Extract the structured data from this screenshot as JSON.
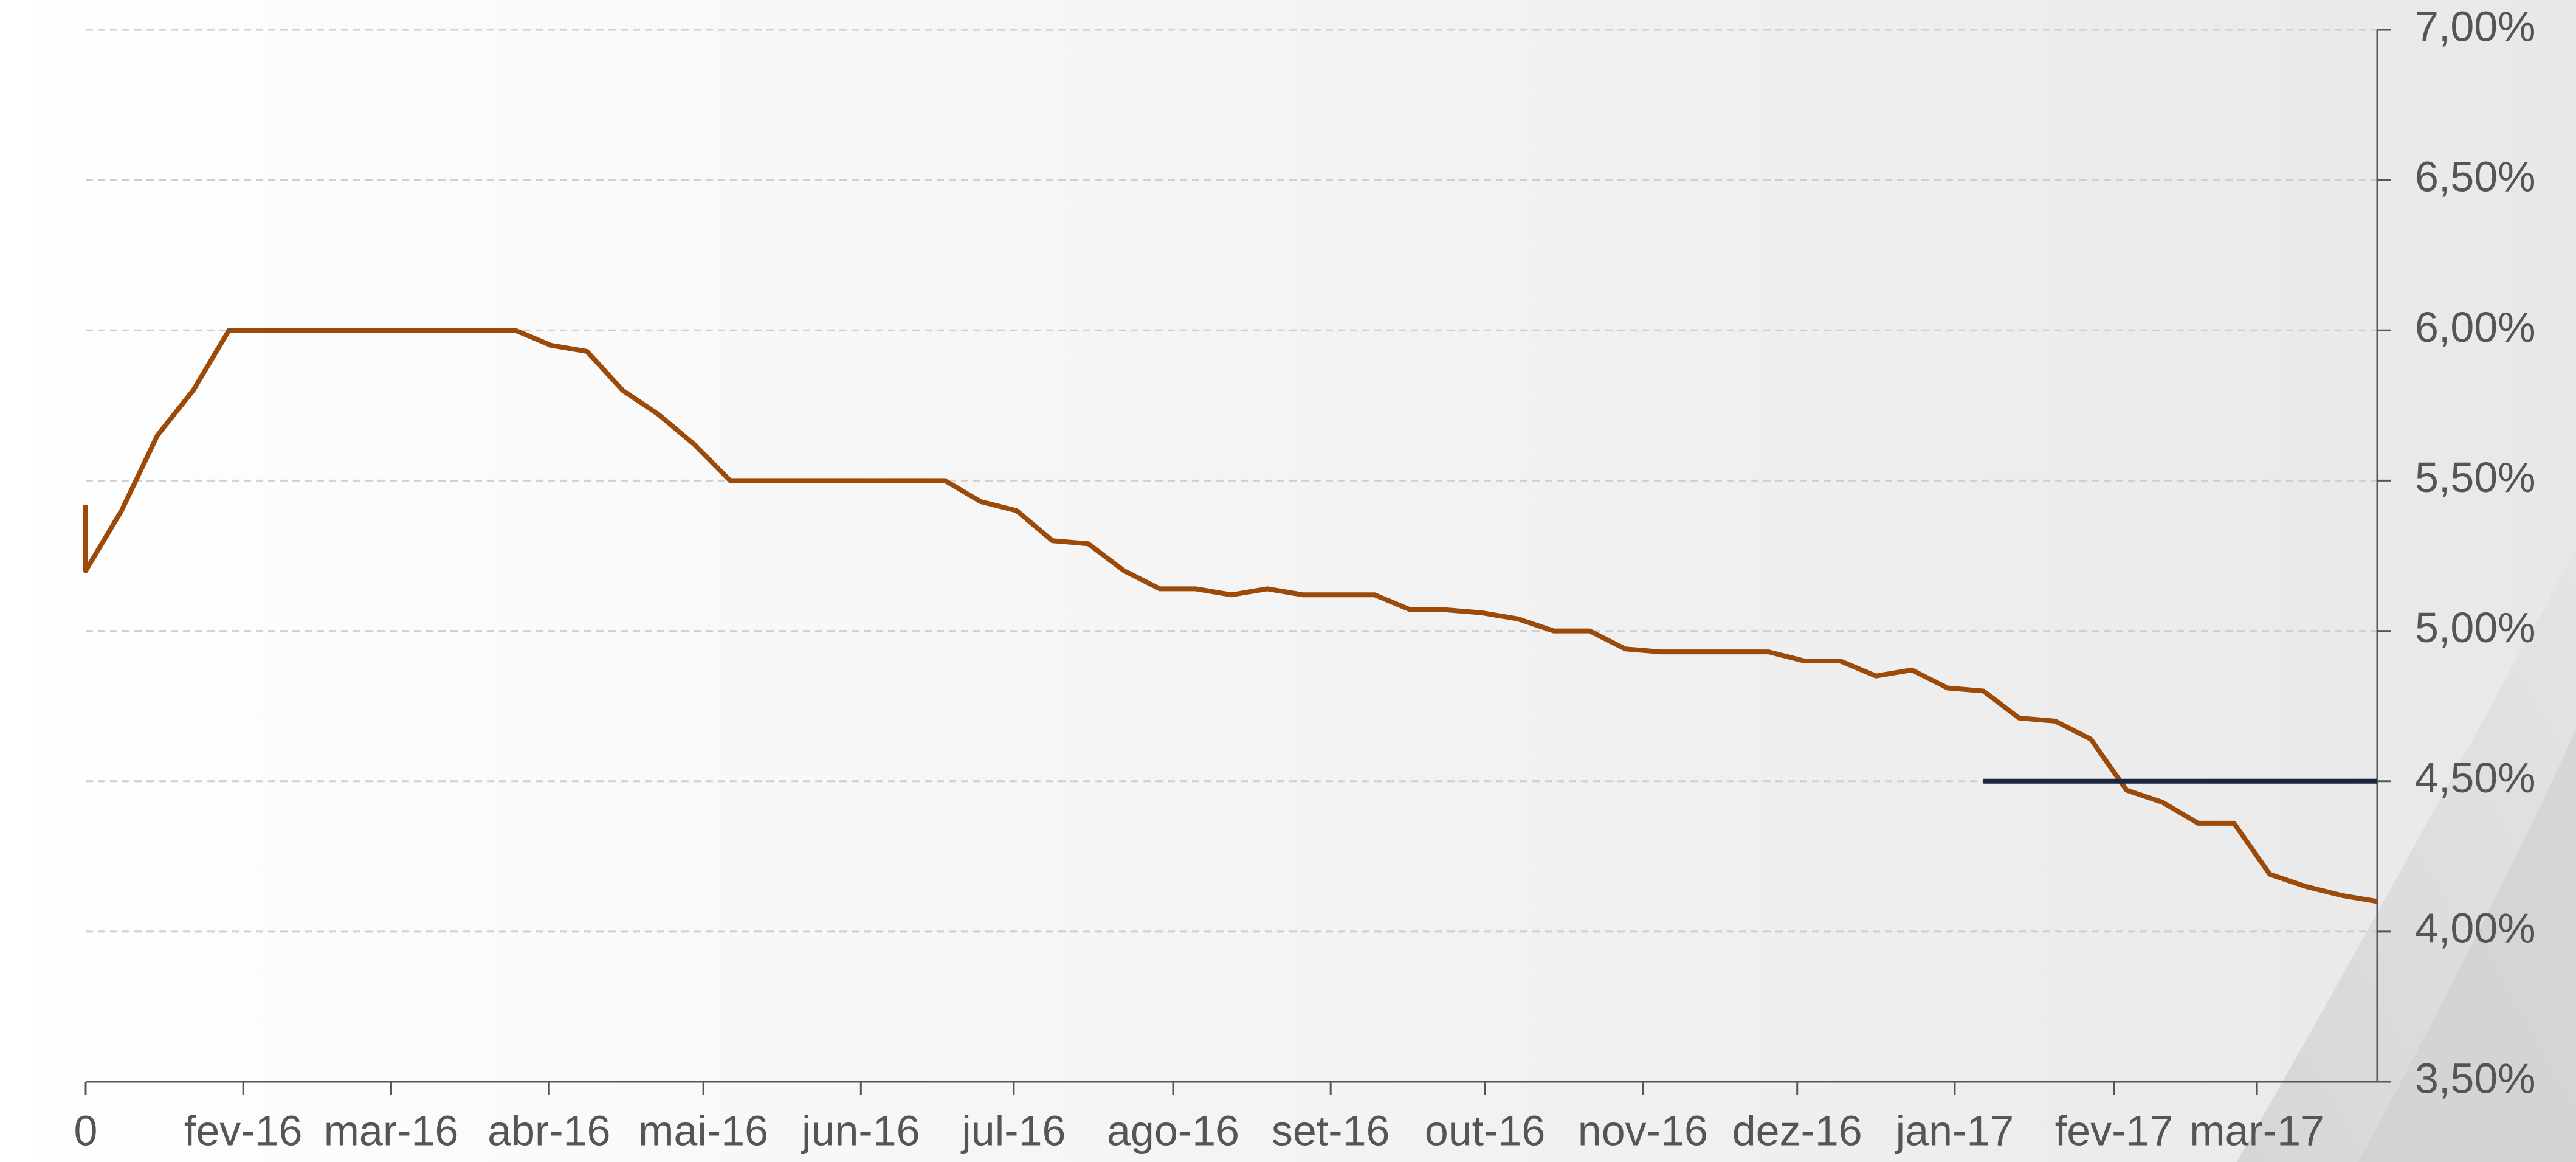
{
  "chart_data": {
    "type": "line",
    "xlim": [
      0,
      64
    ],
    "xticks": [
      0,
      {
        "value": 4.4,
        "label": "fev-16"
      },
      {
        "value": 8.53,
        "label": "mar-16"
      },
      {
        "value": 12.94,
        "label": "abr-16"
      },
      {
        "value": 17.25,
        "label": "mai-16"
      },
      {
        "value": 21.65,
        "label": "jun-16"
      },
      {
        "value": 25.92,
        "label": "jul-16"
      },
      {
        "value": 30.37,
        "label": "ago-16"
      },
      {
        "value": 34.77,
        "label": "set-16"
      },
      {
        "value": 39.08,
        "label": "out-16"
      },
      {
        "value": 43.49,
        "label": "nov-16"
      },
      {
        "value": 47.8,
        "label": "dez-16"
      },
      {
        "value": 52.2,
        "label": "jan-17"
      },
      {
        "value": 56.65,
        "label": "fev-17"
      },
      {
        "value": 60.64,
        "label": "mar-17"
      }
    ],
    "ylim": [
      3.5,
      7
    ],
    "yticks": [
      {
        "value": 3.5,
        "label": "3,50%"
      },
      {
        "value": 4,
        "label": "4,00%"
      },
      {
        "value": 4.5,
        "label": "4,50%"
      },
      {
        "value": 5,
        "label": "5,00%"
      },
      {
        "value": 5.5,
        "label": "5,50%"
      },
      {
        "value": 6,
        "label": "6,00%"
      },
      {
        "value": 6.5,
        "label": "6,50%"
      },
      {
        "value": 7,
        "label": "7,00%"
      }
    ],
    "grid": true,
    "series": [
      {
        "color": "#9c4a0a",
        "x": [
          0,
          0,
          1,
          2,
          3,
          4,
          5,
          6,
          7,
          8,
          9,
          10,
          11,
          12,
          13,
          14,
          15,
          16,
          17,
          18,
          19,
          20,
          21,
          22,
          23,
          24,
          25,
          26,
          27,
          28,
          29,
          30,
          31,
          32,
          33,
          34,
          35,
          36,
          37,
          38,
          39,
          40,
          41,
          42,
          43,
          44,
          45,
          46,
          47,
          48,
          49,
          50,
          51,
          52,
          53,
          54,
          55,
          56,
          57,
          58,
          59,
          60,
          61,
          62,
          63,
          64
        ],
        "values": [
          5.42,
          5.2,
          5.4,
          5.65,
          5.8,
          6.0,
          6.0,
          6.0,
          6.0,
          6.0,
          6.0,
          6.0,
          6.0,
          6.0,
          5.95,
          5.93,
          5.8,
          5.72,
          5.62,
          5.5,
          5.5,
          5.5,
          5.5,
          5.5,
          5.5,
          5.5,
          5.43,
          5.4,
          5.3,
          5.29,
          5.2,
          5.14,
          5.14,
          5.12,
          5.14,
          5.12,
          5.12,
          5.12,
          5.07,
          5.07,
          5.06,
          5.04,
          5.0,
          5.0,
          4.94,
          4.93,
          4.93,
          4.93,
          4.93,
          4.9,
          4.9,
          4.85,
          4.87,
          4.81,
          4.8,
          4.71,
          4.7,
          4.64,
          4.47,
          4.43,
          4.36,
          4.36,
          4.19,
          4.15,
          4.12,
          4.1
        ]
      },
      {
        "color": "#1a2540",
        "x": [
          53,
          64
        ],
        "values": [
          4.5,
          4.5
        ]
      }
    ]
  }
}
